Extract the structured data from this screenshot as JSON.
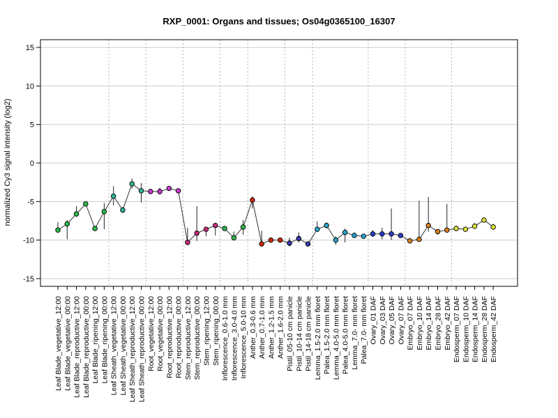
{
  "chart_data": {
    "type": "line",
    "title": "RXP_0001: Organs and tissues; Os04g0365100_16307",
    "xlabel": "",
    "ylabel": "normalized Cy3 signal intensity (log2)",
    "ylim": [
      -16,
      16
    ],
    "yticks": [
      -15,
      -10,
      -5,
      0,
      5,
      10,
      15
    ],
    "grid": "horizontal lines at y ticks; dotted vertical lines between tissue groups",
    "categories": [
      "Leaf Blade_vegetative_12:00",
      "Leaf Blade_vegetative_00:00",
      "Leaf Blade_reproductive_12:00",
      "Leaf Blade_reproductive_00:00",
      "Leaf Blade_ripening_12:00",
      "Leaf Blade_ripening_00:00",
      "Leaf Sheath_vegetative_12:00",
      "Leaf Sheath_vegetative_00:00",
      "Leaf Sheath_reproductive_12:00",
      "Leaf Sheath_reproductive_00:00",
      "Root_vegetative_12:00",
      "Root_vegetative_00:00",
      "Root_reproductive_12:00",
      "Root_reproductive_00:00",
      "Stem_reproductive_12:00",
      "Stem_reproductive_00:00",
      "Stem_ripening_12:00",
      "Stem_ripening_00:00",
      "Inflorescence_0.6-1.0 mm",
      "Inflorescence_3.0-4.0 mm",
      "Inflorescence_5.0-10 mm",
      "Anther_0.3-0.6 mm",
      "Anther_0.7-1.0 mm",
      "Anther_1.2-1.5 mm",
      "Anther_1.6-2.0 mm",
      "Pistil_05-10 cm panicle",
      "Pistil_10-14 cm panicle",
      "Pistil_14-18 cm panicle",
      "Lemma_1.5-2.0 mm floret",
      "Palea_1.5-2.0 mm floret",
      "Lemma_4.0-5.0 mm floret",
      "Palea_4.0-5.0 mm floret",
      "Lemma_7.0- mm floret",
      "Palea_7.0- mm floret",
      "Ovary_01 DAF",
      "Ovary_03 DAF",
      "Ovary_05 DAF",
      "Ovary_07 DAF",
      "Embryo_07 DAF",
      "Embryo_10 DAF",
      "Embryo_14 DAF",
      "Embryo_28 DAF",
      "Embryo_42 DAF",
      "Endosperm_07 DAF",
      "Endosperm_10 DAF",
      "Endosperm_14 DAF",
      "Endosperm_28 DAF",
      "Endosperm_42 DAF"
    ],
    "values": [
      -8.7,
      -7.9,
      -6.6,
      -5.3,
      -8.5,
      -6.3,
      -4.3,
      -6.1,
      -2.7,
      -3.6,
      -3.7,
      -3.7,
      -3.3,
      -3.6,
      -10.3,
      -9.1,
      -8.6,
      -8.1,
      -8.5,
      -9.7,
      -8.3,
      -4.8,
      -10.5,
      -10.0,
      -10.0,
      -10.4,
      -9.8,
      -10.5,
      -8.6,
      -8.1,
      -10.0,
      -9.0,
      -9.4,
      -9.5,
      -9.2,
      -9.2,
      -9.2,
      -9.4,
      -10.1,
      -9.9,
      -8.1,
      -8.9,
      -8.7,
      -8.5,
      -8.6,
      -8.2,
      -7.4,
      -8.3
    ],
    "error_high": [
      -7.7,
      -7.4,
      -5.6,
      -5.1,
      -8.3,
      -5.2,
      -3.0,
      -5.7,
      -2.0,
      -2.6,
      -3.5,
      -3.2,
      -3.0,
      -3.5,
      -8.4,
      -5.6,
      -8.4,
      -7.8,
      -8.2,
      -8.9,
      -7.4,
      -4.3,
      -8.8,
      -9.8,
      -9.8,
      -9.7,
      -9.0,
      -10.2,
      -7.6,
      -7.7,
      -9.5,
      -8.5,
      -9.0,
      -9.2,
      -8.7,
      -8.4,
      -5.9,
      -9.1,
      -9.8,
      -4.9,
      -4.4,
      -8.6,
      -5.3,
      -8.1,
      -8.3,
      -7.8,
      -7.1,
      -7.9
    ],
    "error_low": [
      -9.0,
      -9.9,
      -7.0,
      -5.5,
      -8.7,
      -8.6,
      -5.5,
      -6.5,
      -3.3,
      -5.1,
      -3.9,
      -4.1,
      -3.6,
      -3.7,
      -10.6,
      -10.1,
      -9.5,
      -9.4,
      -8.8,
      -10.0,
      -9.3,
      -5.9,
      -10.6,
      -10.1,
      -10.1,
      -10.8,
      -10.3,
      -10.6,
      -8.8,
      -8.5,
      -10.6,
      -10.3,
      -9.7,
      -9.7,
      -9.6,
      -9.9,
      -10.0,
      -9.7,
      -10.3,
      -10.1,
      -8.9,
      -9.3,
      -8.9,
      -8.7,
      -8.8,
      -8.4,
      -7.6,
      -8.5
    ],
    "colors": [
      "#2db84d",
      "#2db84d",
      "#2db84d",
      "#2db84d",
      "#2db84d",
      "#2db84d",
      "#2fb596",
      "#2fb596",
      "#2fb596",
      "#2fb596",
      "#c43ac9",
      "#c43ac9",
      "#c43ac9",
      "#c43ac9",
      "#c72c7a",
      "#c72c7a",
      "#c72c7a",
      "#c72c7a",
      "#32b34c",
      "#32b34c",
      "#32b34c",
      "#c92a0c",
      "#c92a0c",
      "#c92a0c",
      "#c92a0c",
      "#3a39a8",
      "#3a39a8",
      "#3a39a8",
      "#27a3cc",
      "#27a3cc",
      "#27a3cc",
      "#27a3cc",
      "#27a3cc",
      "#27a3cc",
      "#2b3cc4",
      "#2b3cc4",
      "#2b3cc4",
      "#2b3cc4",
      "#d57e21",
      "#d57e21",
      "#d57e21",
      "#d57e21",
      "#d57e21",
      "#d9df3a",
      "#d9df3a",
      "#d9df3a",
      "#d9df3a",
      "#d9df3a"
    ],
    "group_separators_after_index": [
      5,
      9,
      13,
      17,
      20,
      24,
      27,
      33,
      37,
      42
    ]
  }
}
